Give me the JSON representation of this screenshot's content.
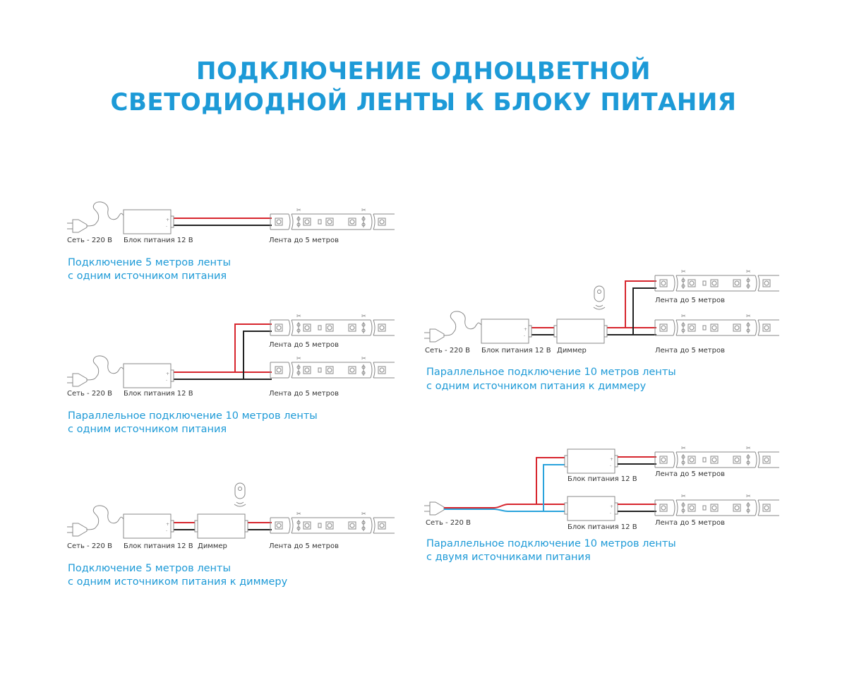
{
  "title": {
    "line1": "ПОДКЛЮЧЕНИЕ ОДНОЦВЕТНОЙ",
    "line2": "СВЕТОДИОДНОЙ ЛЕНТЫ К БЛОКУ ПИТАНИЯ"
  },
  "colors": {
    "accent": "#1d9ad7",
    "positive_wire": "#d7262e",
    "negative_wire": "#222222",
    "neutral_wire": "#2aa3dc"
  },
  "labels": {
    "mains": "Сеть - 220 В",
    "psu": "Блок питания 12 В",
    "dimmer": "Диммер",
    "strip": "Лента до 5 метров"
  },
  "diagrams": [
    {
      "caption1": "Подключение 5 метров ленты",
      "caption2": "с одним источником питания"
    },
    {
      "caption1": "Параллельное подключение 10 метров ленты",
      "caption2": "с одним источником питания"
    },
    {
      "caption1": "Подключение 5 метров ленты",
      "caption2": "с одним источником питания к диммеру"
    },
    {
      "caption1": "Параллельное подключение 10 метров ленты",
      "caption2": "с одним источником питания к диммеру"
    },
    {
      "caption1": "Параллельное подключение 10 метров ленты",
      "caption2": "с двумя источниками питания"
    }
  ]
}
